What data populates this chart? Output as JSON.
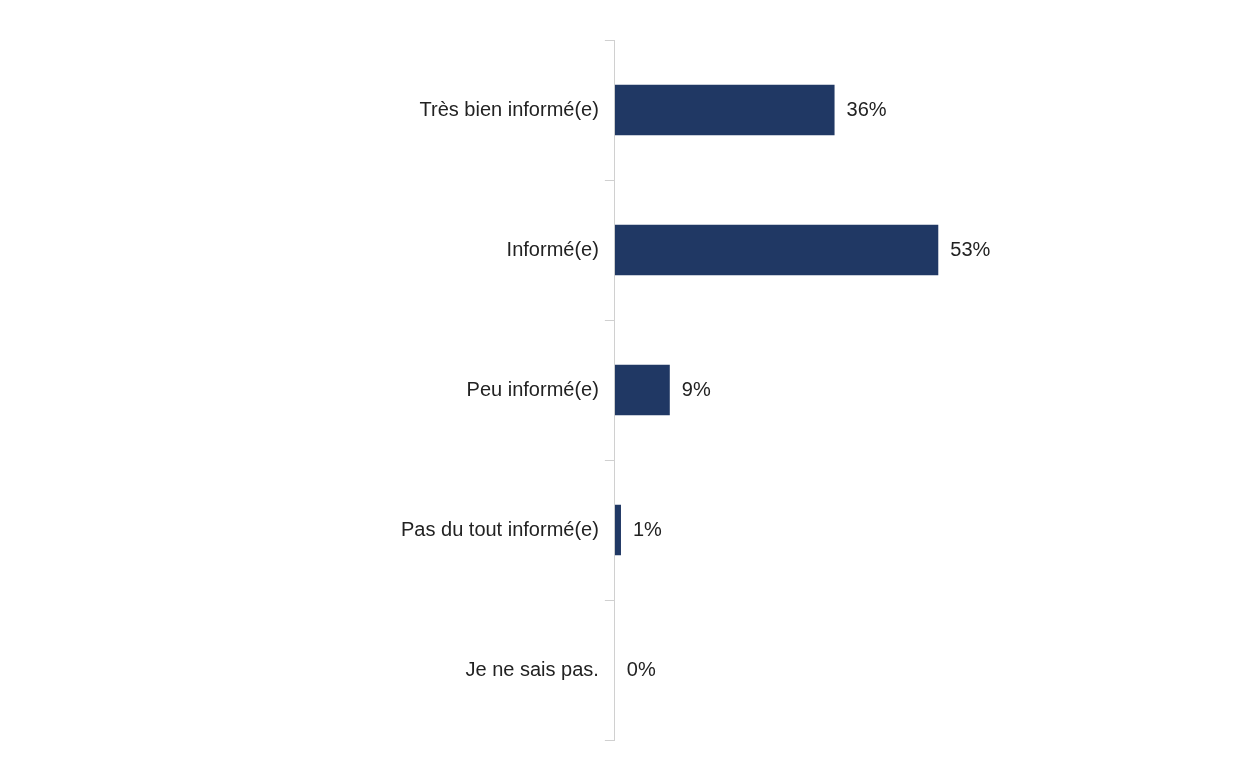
{
  "chart_data": {
    "type": "bar",
    "orientation": "horizontal",
    "categories": [
      "Très bien informé(e)",
      "Informé(e)",
      "Peu informé(e)",
      "Pas du tout informé(e)",
      "Je ne sais pas."
    ],
    "values": [
      36,
      53,
      9,
      1,
      0
    ],
    "value_labels": [
      "36%",
      "53%",
      "9%",
      "1%",
      "0%"
    ],
    "color": "#203864",
    "tick_labels": "y",
    "grid": false,
    "legend": false
  }
}
